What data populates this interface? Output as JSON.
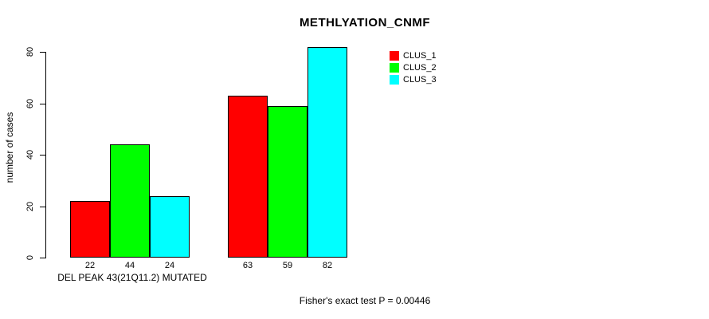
{
  "chart_data": {
    "type": "bar",
    "title": "METHLYATION_CNMF",
    "ylabel": "number of cases",
    "xlabel": "DEL PEAK 43(21Q11.2) MUTATED",
    "footnote": "Fisher's exact test P = 0.00446",
    "ylim": [
      0,
      80
    ],
    "yticks": [
      0,
      20,
      40,
      60,
      80
    ],
    "grid": false,
    "legend_position": "top-right",
    "legend": [
      {
        "label": "CLUS_1",
        "color": "#FF0000"
      },
      {
        "label": "CLUS_2",
        "color": "#00FF00"
      },
      {
        "label": "CLUS_3",
        "color": "#00FFFF"
      }
    ],
    "bar_border_color": "#000000",
    "background_color": "#FFFFFF",
    "groups": [
      {
        "values": [
          22,
          44,
          24
        ]
      },
      {
        "values": [
          63,
          59,
          82
        ]
      }
    ],
    "series": [
      {
        "name": "CLUS_1",
        "values": [
          22,
          63
        ]
      },
      {
        "name": "CLUS_2",
        "values": [
          44,
          59
        ]
      },
      {
        "name": "CLUS_3",
        "values": [
          24,
          82
        ]
      }
    ],
    "bar_value_labels_shown": true
  }
}
